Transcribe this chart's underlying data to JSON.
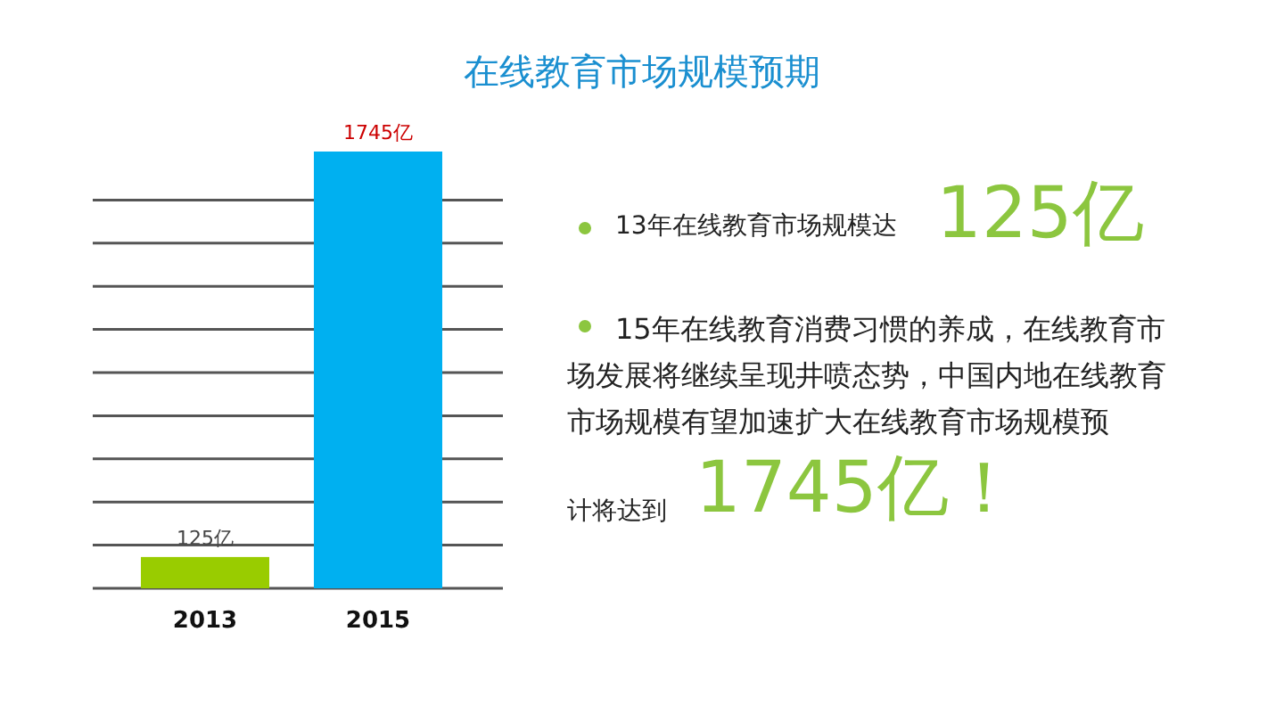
{
  "chart_data": {
    "type": "bar",
    "title": "在线教育市场规模预期",
    "categories": [
      "2013",
      "2015"
    ],
    "values": [
      125,
      1745
    ],
    "colors": [
      "#99cc00",
      "#00b0f0"
    ],
    "value_labels": [
      "125亿",
      "1745亿"
    ],
    "grid": true,
    "annotations": [
      "13年在线教育市场规模达",
      "125亿",
      "15年在线教育消费习惯的养成，在线教育市场发展将继续呈现井喷态势，中国内地在线教育市场规模有望加速扩大在线教育市场规模预",
      "计将达到",
      "1745亿！"
    ]
  }
}
